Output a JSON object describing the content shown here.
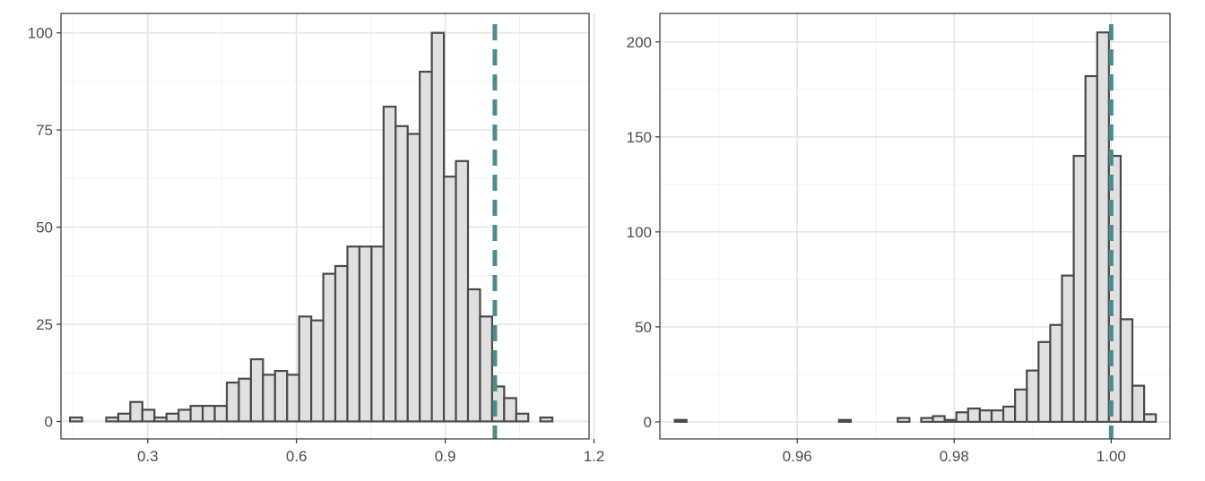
{
  "colors": {
    "bar_fill": "#e0e0e0",
    "bar_outline": "#4a4a4a",
    "reference_line": "#4c8c8e",
    "panel_background": "#ffffff",
    "grid": "#e6e6e6"
  },
  "chart_data": [
    {
      "type": "bar",
      "subtype": "histogram",
      "title": "",
      "xlabel": "",
      "ylabel": "",
      "xlim": [
        0.125,
        1.19
      ],
      "ylim": [
        -4.5,
        105
      ],
      "x_ticks": [
        0.3,
        0.6,
        0.9,
        1.2
      ],
      "x_tick_labels": [
        "0.3",
        "0.6",
        "0.9",
        "1.2"
      ],
      "x_minor_ticks": [
        0.15,
        0.45,
        0.75,
        1.05
      ],
      "y_ticks": [
        0,
        25,
        50,
        75,
        100
      ],
      "y_tick_labels": [
        "0",
        "25",
        "50",
        "75",
        "100"
      ],
      "y_minor_ticks": [
        12.5,
        37.5,
        62.5,
        87.5
      ],
      "bin_start": 0.1433,
      "bin_width": 0.02432,
      "counts": [
        1,
        0,
        0,
        1,
        2,
        5,
        3,
        1,
        2,
        3,
        4,
        4,
        4,
        10,
        11,
        16,
        12,
        13,
        12,
        27,
        26,
        38,
        40,
        45,
        45,
        45,
        81,
        76,
        74,
        90,
        100,
        63,
        67,
        34,
        27,
        9,
        6,
        2,
        0,
        1
      ],
      "reference_line": {
        "x": 1.0,
        "style": "dashed"
      },
      "grid": true,
      "legend": "none"
    },
    {
      "type": "bar",
      "subtype": "histogram",
      "title": "",
      "xlabel": "",
      "ylabel": "",
      "xlim": [
        0.9425,
        1.0075
      ],
      "ylim": [
        -9,
        215
      ],
      "x_ticks": [
        0.96,
        0.98,
        1.0
      ],
      "x_tick_labels": [
        "0.96",
        "0.98",
        "1.00"
      ],
      "x_minor_ticks": [
        0.95,
        0.97,
        0.99
      ],
      "y_ticks": [
        0,
        50,
        100,
        150,
        200
      ],
      "y_tick_labels": [
        "0",
        "50",
        "100",
        "150",
        "200"
      ],
      "y_minor_ticks": [
        25,
        75,
        125,
        175
      ],
      "bin_start": 0.9444,
      "bin_width": 0.001495,
      "counts": [
        1,
        0,
        0,
        0,
        0,
        0,
        0,
        0,
        0,
        0,
        0,
        0,
        0,
        0,
        1,
        0,
        0,
        0,
        0,
        2,
        0,
        2,
        3,
        1,
        5,
        7,
        6,
        6,
        8,
        17,
        27,
        42,
        51,
        77,
        140,
        182,
        205,
        140,
        54,
        19,
        4
      ],
      "reference_line": {
        "x": 1.0,
        "style": "dashed"
      },
      "grid": true,
      "legend": "none"
    }
  ]
}
